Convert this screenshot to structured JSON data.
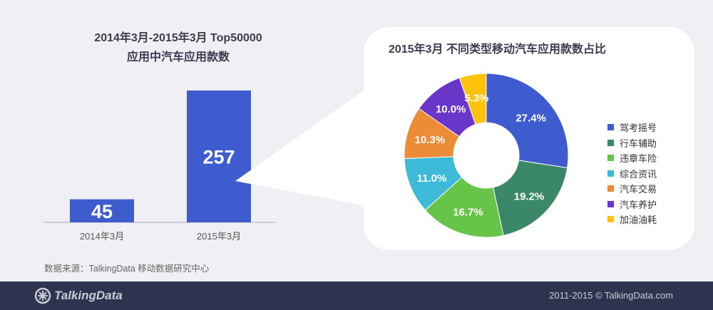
{
  "bar_chart": {
    "title_line1": "2014年3月-2015年3月 Top50000",
    "title_line2": "应用中汽车应用款数"
  },
  "pie_chart": {
    "title": "2015年3月  不同类型移动汽车应用款数占比"
  },
  "chart_data": [
    {
      "type": "bar",
      "title": "2014年3月-2015年3月 Top50000 应用中汽车应用款数",
      "categories": [
        "2014年3月",
        "2015年3月"
      ],
      "values": [
        45,
        257
      ],
      "value_labels": [
        "45",
        "257"
      ],
      "color": "#3f5ccf",
      "ylim": [
        0,
        257
      ]
    },
    {
      "type": "pie",
      "title": "2015年3月  不同类型移动汽车应用款数占比",
      "donut": true,
      "legend_position": "right",
      "slices": [
        {
          "label": "驾考摇号",
          "value": 27.4,
          "text": "27.4%",
          "color": "#3f5ccf"
        },
        {
          "label": "行车辅助",
          "value": 19.2,
          "text": "19.2%",
          "color": "#3a8868"
        },
        {
          "label": "违章车险",
          "value": 16.7,
          "text": "16.7%",
          "color": "#66c549"
        },
        {
          "label": "综合资讯",
          "value": 11.0,
          "text": "11.0%",
          "color": "#3cbad8"
        },
        {
          "label": "汽车交易",
          "value": 10.3,
          "text": "10.3%",
          "color": "#ec8c37"
        },
        {
          "label": "汽车养护",
          "value": 10.0,
          "text": "10.0%",
          "color": "#6a35c9"
        },
        {
          "label": "加油油耗",
          "value": 5.3,
          "text": "5.3%",
          "color": "#fdc20b"
        }
      ]
    }
  ],
  "source": "数据来源：TalkingData 移动数据研究中心",
  "footer": {
    "brand": "TalkingData",
    "copyright": "2011-2015 © TalkingData.com"
  }
}
